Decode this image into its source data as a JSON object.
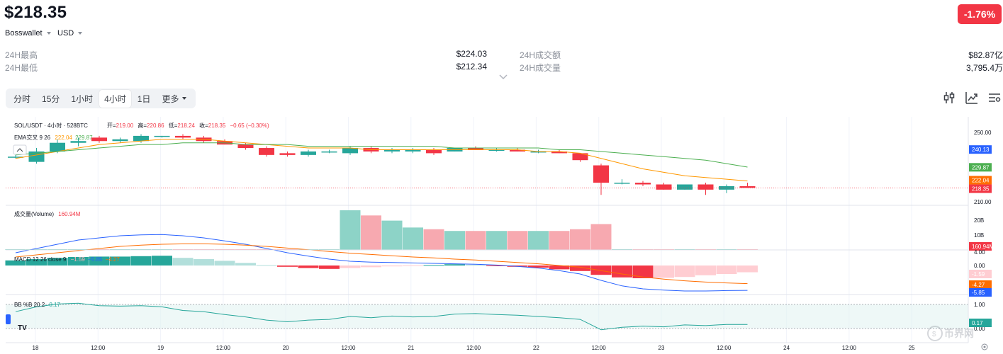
{
  "header": {
    "price": "$218.35",
    "change": "-1.76%",
    "wallet": "Bosswallet",
    "currency": "USD"
  },
  "stats": [
    {
      "label": "24H最高",
      "value": "$224.03"
    },
    {
      "label": "24H最低",
      "value": "$212.34"
    },
    {
      "label": "24H成交额",
      "value": "$82.87亿"
    },
    {
      "label": "24H成交量",
      "value": "3,795.4万"
    }
  ],
  "timeframes": [
    "分时",
    "15分",
    "1小时",
    "4小时",
    "1日",
    "更多"
  ],
  "active_timeframe": "4小时",
  "chart": {
    "symbol_line": "SOL/USDT · 4小时 · 528BTC",
    "ohlc": {
      "open_label": "开=",
      "open": "219.00",
      "high_label": "高=",
      "high": "220.86",
      "low_label": "低=",
      "low": "218.24",
      "close_label": "收=",
      "close": "218.35",
      "change": "−0.65 (−0.30%)"
    },
    "ema_label": "EMA交叉 9 26",
    "ema_vals": [
      "222.04",
      "229.87"
    ],
    "volume_label": "成交量(Volume)",
    "volume_val": "160.94M",
    "macd_label": "MACD 12 26 close 9",
    "macd_vals": [
      "−1.59",
      "−5.85",
      "−4.27"
    ],
    "bb_label": "BB %B 20 2",
    "bb_val": "0.17",
    "price_ticks": [
      "250.00",
      "210.00"
    ],
    "price_tags": [
      {
        "text": "240.13",
        "color": "#2962ff"
      },
      {
        "text": "229.87",
        "color": "#4caf50"
      },
      {
        "text": "222.04",
        "color": "#ff6d00"
      },
      {
        "text": "218.35",
        "color": "#f23645"
      }
    ],
    "vol_ticks": [
      "20B",
      "10B"
    ],
    "vol_tag": "160.94M",
    "macd_ticks": [
      "4.00",
      "0.00"
    ],
    "macd_tags": [
      {
        "text": "-1.59",
        "color": "#ffcdd2",
        "textColor": "#131722"
      },
      {
        "text": "-4.27",
        "color": "#ff6d00",
        "textColor": "#ffffff"
      },
      {
        "text": "-5.85",
        "color": "#2962ff",
        "textColor": "#ffffff"
      }
    ],
    "bb_ticks": [
      "1.00",
      "0.00"
    ],
    "bb_tag": "0.17",
    "time_labels": [
      "18",
      "12:00",
      "19",
      "12:00",
      "20",
      "12:00",
      "21",
      "12:00",
      "22",
      "12:00",
      "23",
      "12:00",
      "24",
      "12:00",
      "25"
    ],
    "watermark": "币界网"
  },
  "colors": {
    "up": "#26a69a",
    "down": "#f23645",
    "ema_fast": "#ff9800",
    "ema_slow": "#4caf50",
    "macd": "#2962ff",
    "signal": "#ff6d00",
    "bb": "#26a69a"
  },
  "chart_data": {
    "type": "candlestick",
    "interval": "4小时",
    "price_axis_ticks": [
      250,
      210
    ],
    "candles": [
      {
        "o": 236,
        "h": 237,
        "l": 235,
        "c": 236
      },
      {
        "o": 233,
        "h": 241,
        "l": 232,
        "c": 239
      },
      {
        "o": 239,
        "h": 246,
        "l": 238,
        "c": 244
      },
      {
        "o": 244,
        "h": 247,
        "l": 242,
        "c": 245
      },
      {
        "o": 247,
        "h": 248,
        "l": 244,
        "c": 245
      },
      {
        "o": 245,
        "h": 247,
        "l": 244,
        "c": 246
      },
      {
        "o": 245,
        "h": 249,
        "l": 244,
        "c": 248
      },
      {
        "o": 248,
        "h": 248,
        "l": 247,
        "c": 248
      },
      {
        "o": 248,
        "h": 249,
        "l": 246,
        "c": 247
      },
      {
        "o": 247,
        "h": 248,
        "l": 244,
        "c": 245
      },
      {
        "o": 245,
        "h": 246,
        "l": 243,
        "c": 243
      },
      {
        "o": 243,
        "h": 244,
        "l": 240,
        "c": 241
      },
      {
        "o": 241,
        "h": 242,
        "l": 236,
        "c": 237
      },
      {
        "o": 238,
        "h": 239,
        "l": 236,
        "c": 237
      },
      {
        "o": 237,
        "h": 240,
        "l": 236,
        "c": 239
      },
      {
        "o": 239,
        "h": 240,
        "l": 238,
        "c": 239
      },
      {
        "o": 238,
        "h": 242,
        "l": 237,
        "c": 241
      },
      {
        "o": 241,
        "h": 242,
        "l": 238,
        "c": 239
      },
      {
        "o": 239,
        "h": 241,
        "l": 238,
        "c": 240
      },
      {
        "o": 239,
        "h": 241,
        "l": 238,
        "c": 240
      },
      {
        "o": 240,
        "h": 241,
        "l": 237,
        "c": 238
      },
      {
        "o": 239,
        "h": 241,
        "l": 239,
        "c": 241
      },
      {
        "o": 241,
        "h": 242,
        "l": 240,
        "c": 240
      },
      {
        "o": 240,
        "h": 241,
        "l": 239,
        "c": 240
      },
      {
        "o": 240,
        "h": 241,
        "l": 239,
        "c": 239
      },
      {
        "o": 239,
        "h": 240,
        "l": 238,
        "c": 239
      },
      {
        "o": 239,
        "h": 240,
        "l": 238,
        "c": 238
      },
      {
        "o": 238,
        "h": 238,
        "l": 233,
        "c": 234
      },
      {
        "o": 231,
        "h": 232,
        "l": 214,
        "c": 221
      },
      {
        "o": 221,
        "h": 223,
        "l": 220,
        "c": 221
      },
      {
        "o": 221,
        "h": 222,
        "l": 219,
        "c": 220
      },
      {
        "o": 220,
        "h": 221,
        "l": 217,
        "c": 217
      },
      {
        "o": 217,
        "h": 220,
        "l": 217,
        "c": 220
      },
      {
        "o": 220,
        "h": 221,
        "l": 214,
        "c": 217
      },
      {
        "o": 217,
        "h": 220,
        "l": 215,
        "c": 219
      },
      {
        "o": 219,
        "h": 221,
        "l": 218,
        "c": 218
      }
    ],
    "ema_fast_values": [
      235,
      237,
      239,
      241,
      243,
      244,
      245,
      246,
      246,
      246,
      245,
      244,
      243,
      242,
      241,
      241,
      241,
      240,
      240,
      240,
      240,
      240,
      240,
      240,
      240,
      239,
      239,
      238,
      235,
      232,
      229,
      227,
      225,
      224,
      223,
      222
    ],
    "ema_slow_values": [
      237,
      238,
      239,
      240,
      241,
      242,
      243,
      243,
      244,
      244,
      244,
      243,
      243,
      243,
      242,
      242,
      242,
      242,
      242,
      242,
      242,
      241,
      241,
      241,
      241,
      241,
      240,
      240,
      239,
      238,
      237,
      236,
      235,
      234,
      232,
      230
    ],
    "volume_pane": {
      "ticks": [
        "20B",
        "10B"
      ],
      "values_B": [
        0.3,
        0.3,
        0.3,
        0.3,
        0.3,
        0.3,
        0.3,
        0.3,
        0.3,
        0.3,
        0.3,
        0.3,
        0.3,
        0.3,
        0.3,
        0.3,
        23,
        20,
        17,
        13,
        12,
        11,
        11,
        11,
        11,
        11,
        11,
        12,
        15,
        0.3,
        0.3,
        0.3,
        0.3,
        0.3,
        0.3,
        0.16
      ]
    },
    "macd_histogram": [
      1.2,
      1.5,
      1.8,
      2.0,
      2.1,
      2.1,
      2.2,
      2.3,
      1.8,
      1.5,
      1.1,
      0.6,
      0.1,
      -0.3,
      -0.6,
      -0.8,
      -0.6,
      -0.4,
      -0.2,
      -0.1,
      0.1,
      0.3,
      0.2,
      -0.1,
      -0.3,
      -0.5,
      -0.9,
      -1.3,
      -2.2,
      -2.8,
      -3.0,
      -2.9,
      -2.7,
      -2.3,
      -2.0,
      -1.59
    ],
    "bb_percent_b": [
      0.7,
      0.9,
      1.02,
      1.05,
      0.95,
      0.93,
      0.95,
      0.9,
      0.75,
      0.7,
      0.58,
      0.48,
      0.35,
      0.28,
      0.35,
      0.38,
      0.5,
      0.45,
      0.52,
      0.48,
      0.5,
      0.6,
      0.62,
      0.58,
      0.55,
      0.5,
      0.45,
      0.38,
      -0.05,
      0.05,
      0.1,
      0.07,
      0.15,
      0.12,
      0.17,
      0.17
    ]
  }
}
